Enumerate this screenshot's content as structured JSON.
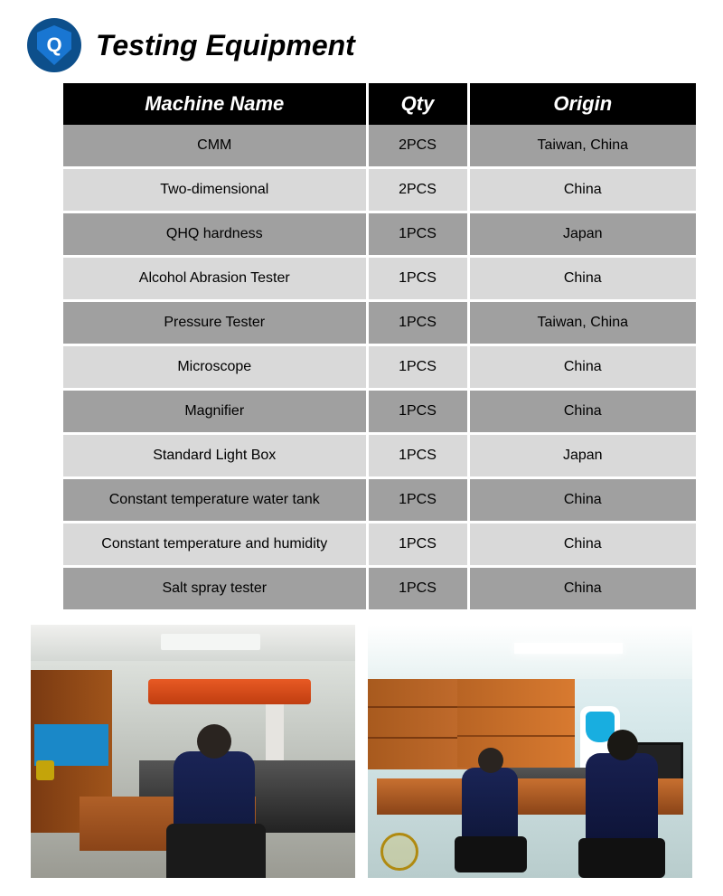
{
  "header": {
    "badge_letter": "Q",
    "title": "Testing Equipment"
  },
  "table": {
    "columns": [
      "Machine Name",
      "Qty",
      "Origin"
    ],
    "col_widths_pct": [
      48,
      16,
      36
    ],
    "header_bg": "#000000",
    "header_fg": "#ffffff",
    "row_bg_odd": "#a0a0a0",
    "row_bg_even": "#d9d9d9",
    "rows": [
      {
        "name": "CMM",
        "qty": "2PCS",
        "origin": "Taiwan, China"
      },
      {
        "name": "Two-dimensional",
        "qty": "2PCS",
        "origin": "China"
      },
      {
        "name": "QHQ hardness",
        "qty": "1PCS",
        "origin": "Japan"
      },
      {
        "name": "Alcohol Abrasion Tester",
        "qty": "1PCS",
        "origin": "China"
      },
      {
        "name": "Pressure Tester",
        "qty": "1PCS",
        "origin": "Taiwan, China"
      },
      {
        "name": "Microscope",
        "qty": "1PCS",
        "origin": "China"
      },
      {
        "name": "Magnifier",
        "qty": "1PCS",
        "origin": "China"
      },
      {
        "name": "Standard Light Box",
        "qty": "1PCS",
        "origin": "Japan"
      },
      {
        "name": "Constant temperature water tank",
        "qty": "1PCS",
        "origin": "China"
      },
      {
        "name": "Constant temperature and humidity",
        "qty": "1PCS",
        "origin": "China"
      },
      {
        "name": "Salt spray tester",
        "qty": "1PCS",
        "origin": "China"
      }
    ]
  },
  "badge_colors": {
    "circle": "#0d4f8b",
    "shield": "#1976d2",
    "letter": "#ffffff"
  }
}
